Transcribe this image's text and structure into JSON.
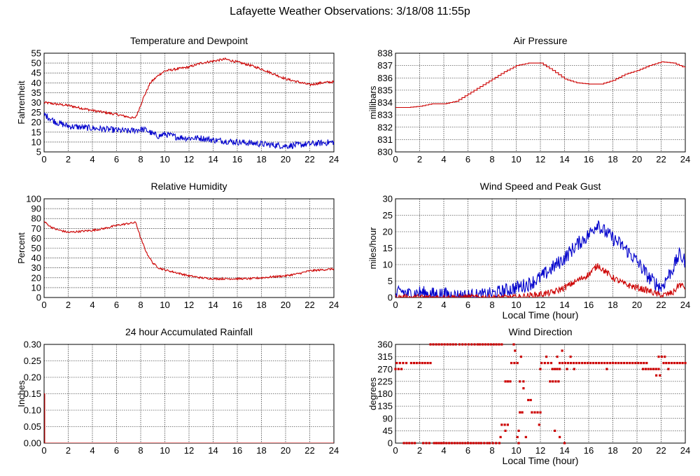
{
  "page": {
    "title": "Lafayette Weather Observations: 3/18/08 11:55p"
  },
  "colors": {
    "primary": "#cc0000",
    "secondary": "#0000cc",
    "grid": "#000000"
  },
  "chart_data": [
    {
      "type": "line",
      "title": "Temperature and Dewpoint",
      "xlabel": "",
      "ylabel": "Fahrenheit",
      "xlim": [
        0,
        24
      ],
      "ylim": [
        5,
        55
      ],
      "grid": true,
      "x_ticks": [
        0,
        2,
        4,
        6,
        8,
        10,
        12,
        14,
        16,
        18,
        20,
        22,
        24
      ],
      "y_ticks": [
        5,
        10,
        15,
        20,
        25,
        30,
        35,
        40,
        45,
        50,
        55
      ],
      "series": [
        {
          "color": "#cc0000",
          "noise": 0.6,
          "x": [
            0,
            2,
            4,
            6,
            7.5,
            7.7,
            8.2,
            8.8,
            9.5,
            10,
            11,
            12,
            13,
            14,
            15,
            16,
            17,
            18,
            19,
            20,
            21,
            22,
            23,
            24
          ],
          "y": [
            30,
            28.5,
            26,
            24,
            22,
            24,
            32,
            40,
            44,
            46,
            47,
            48,
            50,
            51,
            52,
            50.5,
            49,
            47,
            44.5,
            42,
            40.5,
            39,
            40,
            40.5
          ]
        },
        {
          "color": "#0000cc",
          "noise": 1.6,
          "x": [
            0,
            1,
            2,
            4,
            6,
            7,
            8,
            8.5,
            9,
            9.5,
            10,
            11,
            12,
            13,
            14,
            15,
            16,
            17,
            18,
            19,
            20,
            21,
            22,
            23,
            24
          ],
          "y": [
            24,
            20,
            18,
            17,
            16,
            15.5,
            16.5,
            16,
            14,
            13,
            14,
            12.5,
            12,
            12,
            11,
            10.5,
            10,
            9.5,
            9,
            8.5,
            8,
            8.5,
            9,
            9.5,
            10
          ]
        }
      ]
    },
    {
      "type": "line",
      "title": "Air Pressure",
      "xlabel": "",
      "ylabel": "millibars",
      "xlim": [
        0,
        24
      ],
      "ylim": [
        830,
        838
      ],
      "grid": true,
      "x_ticks": [
        0,
        2,
        4,
        6,
        8,
        10,
        12,
        14,
        16,
        18,
        20,
        22,
        24
      ],
      "y_ticks": [
        830,
        831,
        832,
        833,
        834,
        835,
        836,
        837,
        838
      ],
      "series": [
        {
          "color": "#cc0000",
          "noise": 0,
          "step": true,
          "x": [
            0,
            1,
            2,
            3,
            4,
            5,
            6,
            7,
            8,
            9,
            10,
            11,
            12,
            13,
            14,
            15,
            16,
            17,
            18,
            19,
            20,
            21,
            22,
            23,
            24
          ],
          "y": [
            833.6,
            833.6,
            833.7,
            833.9,
            833.9,
            834.1,
            834.7,
            835.3,
            835.9,
            836.5,
            837.0,
            837.2,
            837.2,
            836.6,
            835.9,
            835.6,
            835.5,
            835.5,
            835.8,
            836.3,
            836.6,
            837.0,
            837.3,
            837.2,
            836.8
          ]
        }
      ]
    },
    {
      "type": "line",
      "title": "Relative Humidity",
      "xlabel": "",
      "ylabel": "Percent",
      "xlim": [
        0,
        24
      ],
      "ylim": [
        0,
        100
      ],
      "grid": true,
      "x_ticks": [
        0,
        2,
        4,
        6,
        8,
        10,
        12,
        14,
        16,
        18,
        20,
        22,
        24
      ],
      "y_ticks": [
        0,
        10,
        20,
        30,
        40,
        50,
        60,
        70,
        80,
        90,
        100
      ],
      "series": [
        {
          "color": "#cc0000",
          "noise": 1.0,
          "x": [
            0,
            0.5,
            1,
            2,
            3,
            4,
            5,
            6,
            7,
            7.6,
            8,
            8.5,
            9,
            9.5,
            10,
            11,
            12,
            13,
            14,
            15,
            16,
            17,
            18,
            19,
            20,
            21,
            22,
            23,
            24
          ],
          "y": [
            77,
            72,
            69,
            66,
            67,
            68,
            70,
            73,
            75,
            76,
            60,
            45,
            35,
            30,
            28,
            25,
            22,
            20,
            19,
            19,
            19,
            19,
            20,
            21,
            22,
            24,
            27,
            28,
            29
          ]
        }
      ]
    },
    {
      "type": "line",
      "title": "Wind Speed and Peak Gust",
      "xlabel": "Local Time (hour)",
      "ylabel": "miles/hour",
      "xlim": [
        0,
        24
      ],
      "ylim": [
        0,
        30
      ],
      "grid": true,
      "x_ticks": [
        0,
        2,
        4,
        6,
        8,
        10,
        12,
        14,
        16,
        18,
        20,
        22,
        24
      ],
      "y_ticks": [
        0,
        5,
        10,
        15,
        20,
        25,
        30
      ],
      "series": [
        {
          "color": "#0000cc",
          "noise": 2.2,
          "x": [
            0,
            0.5,
            1,
            2,
            3,
            4,
            5,
            6,
            7,
            8,
            9,
            10,
            11,
            12,
            13,
            14,
            15,
            16,
            16.8,
            17,
            18,
            19,
            20,
            21,
            22,
            23,
            23.5,
            24
          ],
          "y": [
            0.5,
            2,
            1,
            1.5,
            1,
            1,
            0.5,
            0.5,
            0.5,
            1,
            2,
            3,
            4,
            6,
            9,
            12,
            16,
            19,
            23,
            21,
            18,
            15,
            11,
            6,
            3,
            9,
            13,
            11
          ]
        },
        {
          "color": "#cc0000",
          "noise": 1.0,
          "x": [
            0,
            1,
            2,
            3,
            4,
            5,
            6,
            7,
            8,
            9,
            10,
            11,
            12,
            13,
            14,
            15,
            16,
            16.8,
            17,
            18,
            19,
            20,
            21,
            22,
            23,
            23.5,
            24
          ],
          "y": [
            0,
            0,
            0,
            0,
            0,
            0,
            0,
            0,
            0,
            0,
            0,
            0.5,
            1,
            1.5,
            3,
            5,
            7,
            10,
            9,
            6,
            4,
            3,
            2,
            0.5,
            1.5,
            4,
            3
          ]
        }
      ]
    },
    {
      "type": "line",
      "title": "24 hour Accumulated Rainfall",
      "xlabel": "",
      "ylabel": "Inches",
      "xlim": [
        0,
        24
      ],
      "ylim": [
        0,
        0.3
      ],
      "grid": true,
      "x_ticks": [
        0,
        2,
        4,
        6,
        8,
        10,
        12,
        14,
        16,
        18,
        20,
        22,
        24
      ],
      "y_ticks": [
        "0.00",
        "0.05",
        "0.10",
        "0.15",
        "0.20",
        "0.25",
        "0.30"
      ],
      "series": [
        {
          "color": "#cc0000",
          "noise": 0,
          "x": [
            0,
            0.05,
            0.05,
            24
          ],
          "y": [
            0.15,
            0.15,
            0.0,
            0.0
          ]
        }
      ]
    },
    {
      "type": "scatter",
      "title": "Wind Direction",
      "xlabel": "Local Time (hour)",
      "ylabel": "degrees",
      "xlim": [
        0,
        24
      ],
      "ylim": [
        0,
        360
      ],
      "grid": true,
      "x_ticks": [
        0,
        2,
        4,
        6,
        8,
        10,
        12,
        14,
        16,
        18,
        20,
        22,
        24
      ],
      "y_ticks": [
        0,
        45,
        90,
        135,
        180,
        225,
        270,
        315,
        360
      ],
      "segments": [
        {
          "x0": 0.0,
          "x1": 0.5,
          "y": 270
        },
        {
          "x0": 0.1,
          "x1": 0.9,
          "y": 292
        },
        {
          "x0": 1.3,
          "x1": 2.9,
          "y": 292
        },
        {
          "x0": 0.7,
          "x1": 1.6,
          "y": 0
        },
        {
          "x0": 2.3,
          "x1": 2.8,
          "y": 0
        },
        {
          "x0": 3.2,
          "x1": 3.8,
          "y": 0
        },
        {
          "x0": 4.0,
          "x1": 6.9,
          "y": 0
        },
        {
          "x0": 7.1,
          "x1": 7.6,
          "y": 0
        },
        {
          "x0": 7.8,
          "x1": 8.6,
          "y": 0
        },
        {
          "x0": 2.9,
          "x1": 5.0,
          "y": 360
        },
        {
          "x0": 5.3,
          "x1": 6.8,
          "y": 360
        },
        {
          "x0": 7.0,
          "x1": 8.8,
          "y": 360
        },
        {
          "x0": 8.8,
          "x1": 9.3,
          "y": 67
        },
        {
          "x0": 9.1,
          "x1": 9.5,
          "y": 225
        },
        {
          "x0": 9.6,
          "x1": 10.1,
          "y": 292
        },
        {
          "x0": 10.3,
          "x1": 10.6,
          "y": 225
        },
        {
          "x0": 10.3,
          "x1": 10.5,
          "y": 112
        },
        {
          "x0": 11.0,
          "x1": 11.2,
          "y": 157
        },
        {
          "x0": 11.3,
          "x1": 12.0,
          "y": 112
        },
        {
          "x0": 12.1,
          "x1": 12.9,
          "y": 292
        },
        {
          "x0": 12.8,
          "x1": 13.5,
          "y": 225
        },
        {
          "x0": 13.0,
          "x1": 13.6,
          "y": 270
        },
        {
          "x0": 13.6,
          "x1": 20.8,
          "y": 292
        },
        {
          "x0": 20.5,
          "x1": 21.8,
          "y": 270
        },
        {
          "x0": 21.6,
          "x1": 21.9,
          "y": 247
        },
        {
          "x0": 21.8,
          "x1": 22.3,
          "y": 315
        },
        {
          "x0": 22.2,
          "x1": 24.0,
          "y": 292
        }
      ],
      "points": [
        {
          "x": 8.7,
          "y": 22
        },
        {
          "x": 9.1,
          "y": 45
        },
        {
          "x": 9.8,
          "y": 360
        },
        {
          "x": 9.9,
          "y": 337
        },
        {
          "x": 10.2,
          "y": 45
        },
        {
          "x": 10.1,
          "y": 22
        },
        {
          "x": 10.2,
          "y": 0
        },
        {
          "x": 10.4,
          "y": 315
        },
        {
          "x": 10.6,
          "y": 200
        },
        {
          "x": 10.8,
          "y": 22
        },
        {
          "x": 11.9,
          "y": 67
        },
        {
          "x": 12.0,
          "y": 270
        },
        {
          "x": 12.5,
          "y": 315
        },
        {
          "x": 13.2,
          "y": 45
        },
        {
          "x": 13.4,
          "y": 315
        },
        {
          "x": 13.6,
          "y": 22
        },
        {
          "x": 13.8,
          "y": 337
        },
        {
          "x": 14.2,
          "y": 270
        },
        {
          "x": 14.0,
          "y": 0
        },
        {
          "x": 14.5,
          "y": 315
        },
        {
          "x": 14.8,
          "y": 270
        },
        {
          "x": 17.5,
          "y": 270
        },
        {
          "x": 22.6,
          "y": 270
        }
      ]
    }
  ]
}
